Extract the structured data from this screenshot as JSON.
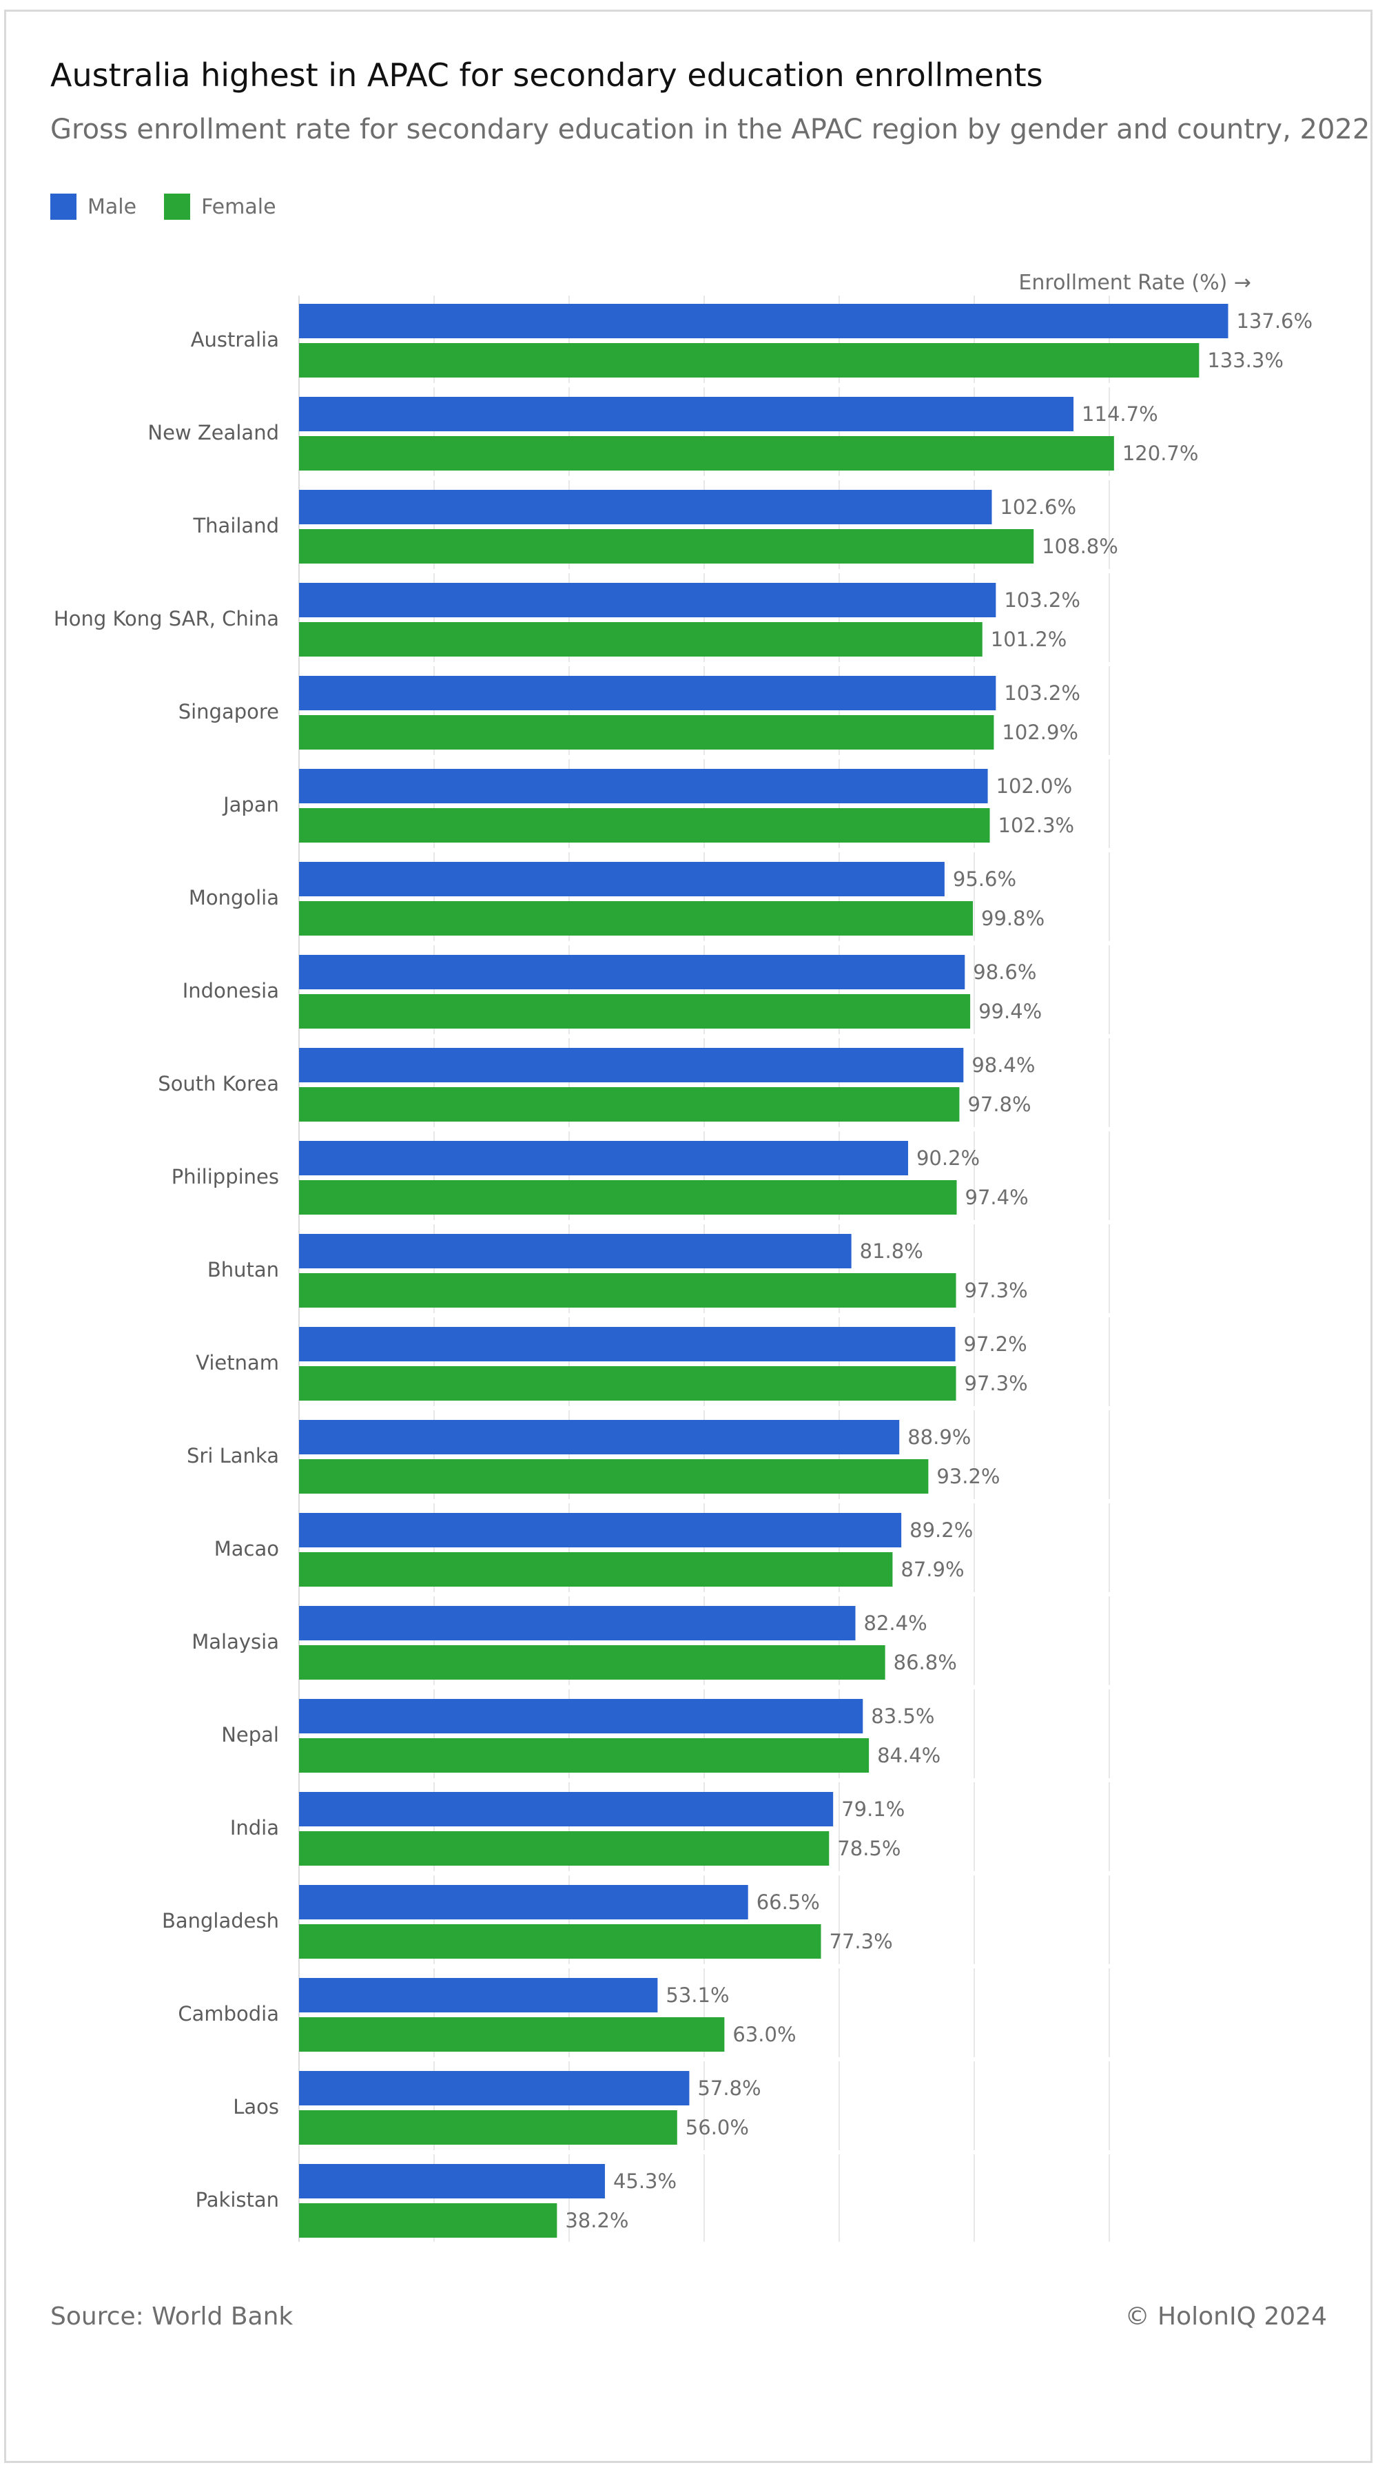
{
  "header": {
    "title": "Australia highest in APAC for secondary education enrollments",
    "subtitle": "Gross enrollment rate for secondary education in the APAC region by gender and country, 2022"
  },
  "legend": [
    {
      "label": "Male",
      "color": "#2963d0"
    },
    {
      "label": "Female",
      "color": "#29a636"
    }
  ],
  "footer": {
    "source": "Source: World Bank",
    "copyright": "© HolonIQ 2024"
  },
  "chart_data": {
    "type": "bar",
    "orientation": "horizontal",
    "title": "Australia highest in APAC for secondary education enrollments",
    "subtitle": "Gross enrollment rate for secondary education in the APAC region by gender and country, 2022",
    "xlabel": "Enrollment Rate (%) →",
    "ylabel": "",
    "xlim": [
      0,
      140
    ],
    "grid": true,
    "legend_position": "top-left",
    "value_suffix": "%",
    "categories": [
      "Australia",
      "New Zealand",
      "Thailand",
      "Hong Kong SAR, China",
      "Singapore",
      "Japan",
      "Mongolia",
      "Indonesia",
      "South Korea",
      "Philippines",
      "Bhutan",
      "Vietnam",
      "Sri Lanka",
      "Macao",
      "Malaysia",
      "Nepal",
      "India",
      "Bangladesh",
      "Cambodia",
      "Laos",
      "Pakistan"
    ],
    "series": [
      {
        "name": "Male",
        "color": "#2963d0",
        "values": [
          137.6,
          114.7,
          102.6,
          103.2,
          103.2,
          102.0,
          95.6,
          98.6,
          98.4,
          90.2,
          81.8,
          97.2,
          88.9,
          89.2,
          82.4,
          83.5,
          79.1,
          66.5,
          53.1,
          57.8,
          45.3
        ]
      },
      {
        "name": "Female",
        "color": "#29a636",
        "values": [
          133.3,
          120.7,
          108.8,
          101.2,
          102.9,
          102.3,
          99.8,
          99.4,
          97.8,
          97.4,
          97.3,
          97.3,
          93.2,
          87.9,
          86.8,
          84.4,
          78.5,
          77.3,
          63.0,
          56.0,
          38.2
        ]
      }
    ]
  }
}
